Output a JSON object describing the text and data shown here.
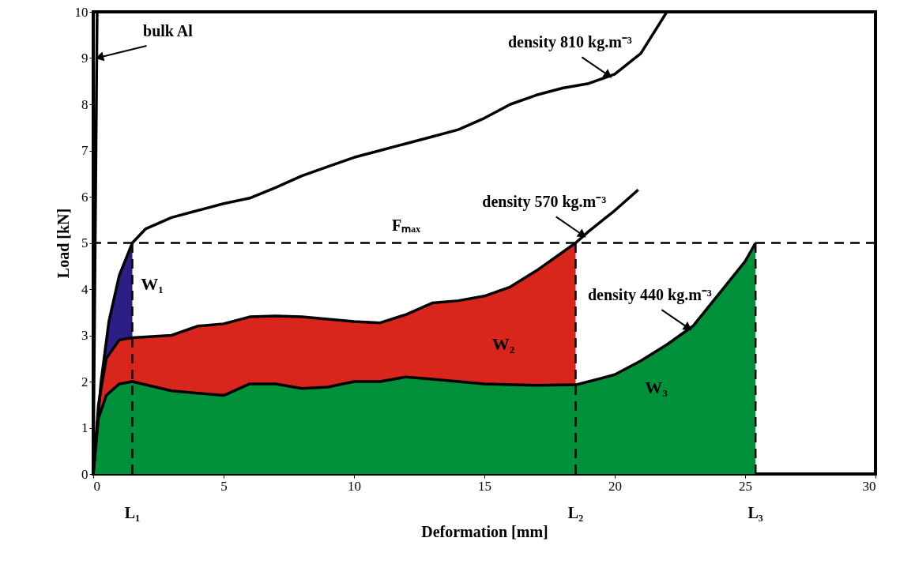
{
  "chart_data": {
    "type": "line",
    "xlabel": "Deformation    [mm]",
    "ylabel": "Load    [kN]",
    "xlim": [
      0,
      30
    ],
    "ylim": [
      0,
      10
    ],
    "xticks": [
      0,
      5,
      10,
      15,
      20,
      25,
      30
    ],
    "yticks": [
      0,
      1,
      2,
      3,
      4,
      5,
      6,
      7,
      8,
      9,
      10
    ],
    "grid": false,
    "marker": "none",
    "line_style": "solid",
    "series": [
      {
        "type": "area",
        "color": "#2b1f86",
        "x": [
          0,
          0.3,
          0.6,
          1,
          1.5
        ],
        "values": [
          0,
          2,
          3.3,
          4.3,
          5.0
        ]
      },
      {
        "type": "area",
        "color": "#d9261c",
        "x": [
          0,
          0.2,
          0.5,
          1,
          1.5,
          3,
          4,
          5,
          6,
          7,
          8,
          9,
          10,
          11,
          12,
          13,
          14,
          15,
          16,
          17,
          18,
          18.5
        ],
        "values": [
          0,
          1.5,
          2.5,
          2.9,
          2.95,
          3.0,
          3.2,
          3.25,
          3.4,
          3.42,
          3.4,
          3.35,
          3.3,
          3.27,
          3.45,
          3.7,
          3.75,
          3.85,
          4.05,
          4.4,
          4.8,
          5.0
        ]
      },
      {
        "type": "area",
        "name": "density   440   kg.m⁻³",
        "color": "#00913a",
        "x": [
          0,
          0.2,
          0.5,
          1,
          1.5,
          3,
          5,
          6,
          7,
          8,
          9,
          10,
          11,
          12,
          13,
          15,
          17,
          18.5,
          19,
          20,
          21,
          22,
          23,
          24,
          25,
          25.4
        ],
        "values": [
          0,
          1.2,
          1.7,
          1.95,
          2.0,
          1.8,
          1.7,
          1.95,
          1.95,
          1.85,
          1.88,
          2.0,
          2.0,
          2.1,
          2.05,
          1.95,
          1.92,
          1.93,
          2.0,
          2.15,
          2.45,
          2.8,
          3.2,
          3.9,
          4.6,
          5.0
        ]
      },
      {
        "name": "bulk   Al",
        "color": "#000000",
        "x": [
          0,
          0.15
        ],
        "values": [
          0,
          10
        ]
      },
      {
        "name": "density   810   kg.m⁻³",
        "color": "#000000",
        "x": [
          0,
          0.3,
          0.6,
          1,
          1.5,
          2,
          3,
          4,
          5,
          6,
          7,
          8,
          9,
          10,
          11,
          12,
          13,
          14,
          15,
          16,
          17,
          18,
          19,
          20,
          21,
          22
        ],
        "values": [
          0,
          2,
          3.3,
          4.3,
          5.0,
          5.3,
          5.55,
          5.7,
          5.85,
          5.97,
          6.2,
          6.45,
          6.65,
          6.85,
          7.0,
          7.15,
          7.3,
          7.45,
          7.7,
          8.0,
          8.2,
          8.35,
          8.45,
          8.65,
          9.1,
          10
        ]
      },
      {
        "name": "density   570   kg.m⁻³",
        "color": "#000000",
        "x": [
          0,
          0.2,
          0.5,
          1,
          1.5,
          3,
          4,
          5,
          6,
          7,
          8,
          9,
          10,
          11,
          12,
          13,
          14,
          15,
          16,
          17,
          18,
          18.5,
          19,
          20,
          20.9
        ],
        "values": [
          0,
          1.5,
          2.5,
          2.9,
          2.95,
          3.0,
          3.2,
          3.25,
          3.4,
          3.42,
          3.4,
          3.35,
          3.3,
          3.27,
          3.45,
          3.7,
          3.75,
          3.85,
          4.05,
          4.4,
          4.8,
          5.0,
          5.25,
          5.7,
          6.15
        ]
      }
    ],
    "annotations": [
      "W₁",
      "W₂",
      "W₃"
    ],
    "ref_lines": [
      {
        "axis": "y",
        "value": 5,
        "label": "Fₘₐₓ",
        "line_style": "dashed"
      },
      {
        "axis": "x",
        "value": 1.5,
        "label": "L₁",
        "line_style": "dashed"
      },
      {
        "axis": "x",
        "value": 18.5,
        "label": "L₂",
        "line_style": "dashed"
      },
      {
        "axis": "x",
        "value": 25.4,
        "label": "L₃",
        "line_style": "dashed"
      }
    ]
  }
}
